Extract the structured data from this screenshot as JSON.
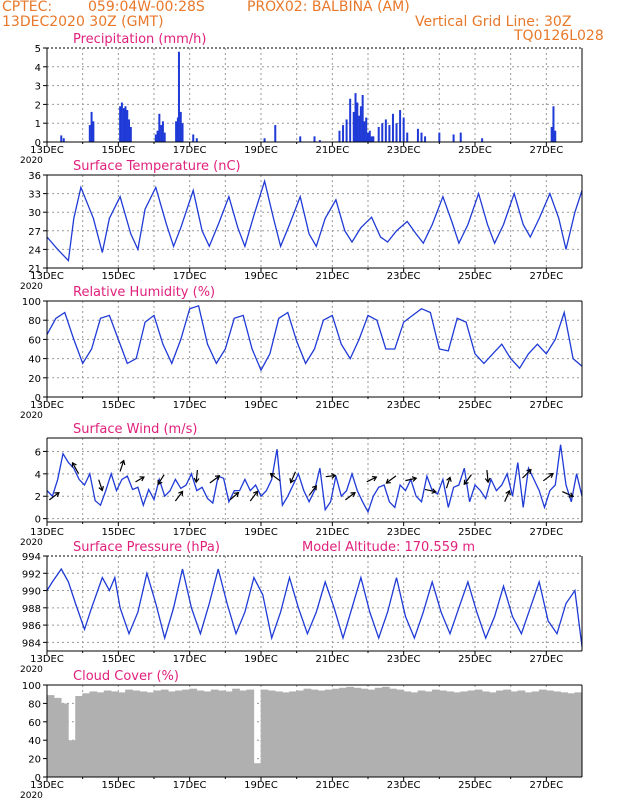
{
  "header": {
    "source": "CPTEC:",
    "coords": "059:04W-00:28S",
    "station": "PROX02: BALBINA (AM)",
    "date": "13DEC2020 30Z (GMT)",
    "grid_note": "Vertical Grid Line: 30Z",
    "run_code": "TQ0126L028"
  },
  "colors": {
    "title": "#e0217c",
    "header": "#e8782a",
    "line": "#1f3ad6",
    "bar": "#1f3ad6",
    "cloud": "#b0b0b0",
    "grid": "#9a9a9a",
    "arrow": "#000000"
  },
  "x_axis": {
    "ticks": [
      "13DEC",
      "15DEC",
      "17DEC",
      "19DEC",
      "21DEC",
      "23DEC",
      "25DEC",
      "27DEC"
    ],
    "tick_days": [
      0,
      2,
      4,
      6,
      8,
      10,
      12,
      14
    ],
    "start_label": "2020",
    "range_days": [
      0,
      15
    ]
  },
  "chart_data": [
    {
      "type": "bar",
      "title": "Precipitation (mm/h)",
      "ylim": [
        0,
        5
      ],
      "yticks": [
        0,
        1,
        2,
        3,
        4,
        5
      ],
      "x_unit": "days after 13DEC2020",
      "series": [
        {
          "x": [
            0.4,
            0.47,
            1.2,
            1.25,
            1.3,
            2.05,
            2.1,
            2.15,
            2.2,
            2.25,
            2.3,
            2.35,
            3.05,
            3.1,
            3.15,
            3.2,
            3.25,
            3.3,
            3.62,
            3.67,
            3.7,
            3.75,
            3.8,
            4.1,
            4.2,
            6.1,
            6.4,
            7.1,
            7.5,
            7.65,
            8.2,
            8.3,
            8.4,
            8.5,
            8.6,
            8.65,
            8.7,
            8.75,
            8.8,
            8.85,
            8.9,
            8.95,
            9.0,
            9.05,
            9.1,
            9.15,
            9.3,
            9.4,
            9.5,
            9.6,
            9.7,
            9.8,
            9.9,
            10.0,
            10.1,
            10.4,
            10.5,
            10.6,
            11.0,
            11.4,
            11.6,
            12.2,
            14.15,
            14.2,
            14.25
          ],
          "values": [
            0.35,
            0.2,
            0.9,
            1.6,
            1.1,
            1.9,
            2.1,
            1.8,
            1.9,
            1.7,
            1.2,
            0.8,
            0.4,
            0.6,
            1.5,
            0.9,
            1.1,
            0.5,
            1.1,
            1.3,
            4.8,
            1.6,
            1.0,
            0.4,
            0.2,
            0.2,
            0.9,
            0.3,
            0.3,
            0.1,
            0.6,
            0.9,
            1.2,
            2.3,
            1.6,
            2.6,
            2.1,
            1.4,
            1.9,
            2.5,
            1.1,
            1.3,
            0.5,
            0.6,
            0.3,
            0.3,
            0.8,
            1.0,
            1.2,
            0.9,
            1.5,
            1.0,
            1.7,
            1.3,
            0.5,
            0.7,
            0.5,
            0.3,
            0.5,
            0.4,
            0.5,
            0.2,
            0.8,
            1.9,
            0.6
          ]
        }
      ]
    },
    {
      "type": "line",
      "title": "Surface Temperature (nC)",
      "ylim": [
        21,
        36
      ],
      "yticks": [
        21,
        24,
        27,
        30,
        33,
        36
      ],
      "x_unit": "days after 13DEC2020",
      "series": [
        {
          "x": [
            0.0,
            0.3,
            0.6,
            0.75,
            0.95,
            1.3,
            1.55,
            1.75,
            2.05,
            2.35,
            2.55,
            2.75,
            3.05,
            3.35,
            3.55,
            3.75,
            4.1,
            4.35,
            4.55,
            4.8,
            5.1,
            5.35,
            5.55,
            5.8,
            6.1,
            6.35,
            6.55,
            6.8,
            7.1,
            7.35,
            7.55,
            7.8,
            8.1,
            8.35,
            8.55,
            8.8,
            9.1,
            9.35,
            9.55,
            9.8,
            10.1,
            10.35,
            10.55,
            10.8,
            11.1,
            11.35,
            11.55,
            11.8,
            12.1,
            12.35,
            12.55,
            12.8,
            13.1,
            13.35,
            13.55,
            13.8,
            14.1,
            14.35,
            14.55,
            14.8,
            15.0
          ],
          "values": [
            26.0,
            24.0,
            22.2,
            29.0,
            34.0,
            29.0,
            23.5,
            29.0,
            32.5,
            26.5,
            24.0,
            30.5,
            34.0,
            28.0,
            24.5,
            27.5,
            33.5,
            27.0,
            24.5,
            28.0,
            32.5,
            27.5,
            24.5,
            29.5,
            35.0,
            29.0,
            24.5,
            28.0,
            32.5,
            26.5,
            24.5,
            29.0,
            32.0,
            27.0,
            25.2,
            27.5,
            29.2,
            26.0,
            25.2,
            27.0,
            28.5,
            26.5,
            25.0,
            28.0,
            32.5,
            28.5,
            25.0,
            28.0,
            33.0,
            28.0,
            25.0,
            28.0,
            33.0,
            28.0,
            26.0,
            29.0,
            33.0,
            29.0,
            24.0,
            30.0,
            33.5
          ]
        }
      ]
    },
    {
      "type": "line",
      "title": "Relative Humidity (%)",
      "ylim": [
        0,
        100
      ],
      "yticks": [
        0,
        20,
        40,
        60,
        80,
        100
      ],
      "x_unit": "days after 13DEC2020",
      "series": [
        {
          "x": [
            0.0,
            0.25,
            0.5,
            0.75,
            1.0,
            1.25,
            1.5,
            1.75,
            2.0,
            2.25,
            2.5,
            2.75,
            3.0,
            3.25,
            3.5,
            3.75,
            4.0,
            4.25,
            4.5,
            4.75,
            5.0,
            5.25,
            5.5,
            5.75,
            6.0,
            6.25,
            6.5,
            6.75,
            7.0,
            7.25,
            7.5,
            7.75,
            8.0,
            8.25,
            8.5,
            8.75,
            9.0,
            9.25,
            9.5,
            9.75,
            10.0,
            10.25,
            10.5,
            10.75,
            11.0,
            11.25,
            11.5,
            11.75,
            12.0,
            12.25,
            12.5,
            12.75,
            13.0,
            13.25,
            13.5,
            13.75,
            14.0,
            14.25,
            14.5,
            14.75,
            15.0
          ],
          "values": [
            65,
            82,
            88,
            60,
            35,
            50,
            82,
            85,
            60,
            35,
            40,
            78,
            85,
            55,
            35,
            60,
            92,
            95,
            55,
            35,
            50,
            82,
            85,
            50,
            28,
            45,
            82,
            88,
            58,
            35,
            50,
            80,
            85,
            55,
            40,
            60,
            85,
            80,
            50,
            50,
            78,
            85,
            92,
            88,
            50,
            48,
            82,
            78,
            45,
            35,
            45,
            55,
            40,
            30,
            45,
            55,
            45,
            60,
            88,
            40,
            32
          ]
        }
      ]
    },
    {
      "type": "line",
      "title": "Surface Wind (m/s)",
      "ylim": [
        -0.3,
        7.2
      ],
      "yticks": [
        0,
        2,
        4,
        6
      ],
      "x_unit": "days after 13DEC2020",
      "series": [
        {
          "x": [
            0.0,
            0.15,
            0.3,
            0.45,
            0.6,
            0.75,
            0.9,
            1.05,
            1.2,
            1.35,
            1.5,
            1.65,
            1.8,
            1.95,
            2.1,
            2.25,
            2.4,
            2.55,
            2.7,
            2.85,
            3.0,
            3.15,
            3.3,
            3.45,
            3.6,
            3.75,
            3.9,
            4.05,
            4.2,
            4.35,
            4.5,
            4.65,
            4.8,
            4.95,
            5.1,
            5.25,
            5.4,
            5.55,
            5.7,
            5.85,
            6.0,
            6.15,
            6.3,
            6.45,
            6.6,
            6.75,
            6.9,
            7.05,
            7.2,
            7.35,
            7.5,
            7.65,
            7.8,
            7.95,
            8.1,
            8.25,
            8.4,
            8.55,
            8.7,
            8.85,
            9.0,
            9.15,
            9.3,
            9.45,
            9.6,
            9.75,
            9.9,
            10.05,
            10.2,
            10.35,
            10.5,
            10.65,
            10.8,
            10.95,
            11.1,
            11.25,
            11.4,
            11.55,
            11.7,
            11.85,
            12.0,
            12.15,
            12.3,
            12.45,
            12.6,
            12.75,
            12.9,
            13.05,
            13.2,
            13.35,
            13.5,
            13.65,
            13.8,
            13.95,
            14.1,
            14.25,
            14.4,
            14.55,
            14.7,
            14.85,
            15.0
          ],
          "values": [
            2.5,
            2.0,
            3.5,
            5.8,
            5.0,
            4.5,
            3.5,
            3.0,
            4.0,
            1.6,
            1.2,
            2.5,
            4.0,
            2.5,
            3.5,
            3.8,
            2.6,
            2.8,
            1.2,
            2.6,
            1.7,
            3.5,
            2.0,
            2.5,
            3.5,
            2.7,
            3.0,
            4.0,
            2.5,
            2.8,
            1.8,
            1.4,
            3.8,
            3.6,
            1.5,
            2.5,
            2.5,
            3.5,
            2.5,
            3.0,
            2.0,
            2.5,
            3.5,
            6.2,
            1.2,
            2.0,
            3.0,
            4.0,
            2.5,
            1.5,
            2.5,
            4.5,
            0.8,
            1.5,
            3.8,
            2.0,
            2.5,
            4.0,
            2.5,
            1.5,
            0.6,
            2.0,
            2.8,
            3.0,
            1.5,
            1.0,
            3.0,
            2.5,
            3.5,
            2.0,
            1.5,
            3.8,
            2.5,
            2.2,
            3.5,
            1.0,
            2.8,
            3.0,
            4.5,
            1.5,
            3.0,
            2.5,
            1.8,
            3.5,
            2.5,
            3.0,
            4.0,
            2.0,
            5.0,
            1.0,
            4.5,
            3.5,
            2.5,
            1.0,
            2.5,
            3.0,
            6.6,
            3.0,
            1.5,
            4.0,
            2.0
          ]
        }
      ],
      "wind_vectors": {
        "x": [
          0.2,
          0.8,
          1.5,
          2.1,
          2.6,
          3.2,
          3.7,
          4.2,
          4.7,
          5.25,
          5.8,
          6.4,
          6.9,
          7.45,
          7.95,
          8.5,
          9.1,
          9.65,
          10.2,
          10.75,
          11.25,
          11.8,
          12.35,
          12.9,
          13.45,
          14.05,
          14.6
        ],
        "values": [
          2.0,
          4.5,
          3.0,
          4.7,
          3.5,
          3.5,
          2.0,
          3.8,
          3.5,
          2.0,
          2.0,
          3.7,
          3.7,
          2.5,
          3.8,
          2.0,
          3.5,
          3.5,
          3.5,
          2.5,
          3.2,
          3.5,
          3.8,
          2.0,
          4.0,
          3.7,
          2.2
        ],
        "dx": [
          0.8,
          -0.5,
          0.3,
          0.3,
          0.7,
          -0.5,
          0.6,
          -0.1,
          0.8,
          0.7,
          0.6,
          -0.8,
          -0.4,
          0.6,
          0.8,
          0.8,
          0.8,
          -0.8,
          0.9,
          0.9,
          0.3,
          -0.6,
          0.1,
          0.4,
          0.7,
          0.8,
          0.9
        ],
        "dy": [
          0.6,
          0.9,
          -0.9,
          0.9,
          0.4,
          -0.8,
          0.8,
          -1.0,
          0.6,
          0.6,
          0.8,
          0.6,
          -0.9,
          0.8,
          0.1,
          0.6,
          0.4,
          -0.6,
          0.2,
          -0.2,
          0.9,
          -0.8,
          -1.0,
          0.9,
          0.7,
          0.6,
          -0.4
        ]
      }
    },
    {
      "type": "line",
      "title": "Surface Pressure (hPa)",
      "annotation": "Model Altitude: 170.559 m",
      "ylim": [
        983,
        994
      ],
      "yticks": [
        984,
        986,
        988,
        990,
        992,
        994
      ],
      "x_unit": "days after 13DEC2020",
      "series": [
        {
          "x": [
            0.0,
            0.15,
            0.4,
            0.6,
            0.8,
            1.05,
            1.25,
            1.55,
            1.75,
            1.9,
            2.05,
            2.3,
            2.55,
            2.8,
            3.05,
            3.3,
            3.55,
            3.8,
            4.05,
            4.3,
            4.55,
            4.8,
            5.05,
            5.3,
            5.55,
            5.8,
            6.05,
            6.3,
            6.55,
            6.8,
            7.05,
            7.3,
            7.55,
            7.8,
            8.05,
            8.3,
            8.55,
            8.8,
            9.05,
            9.3,
            9.55,
            9.8,
            10.05,
            10.3,
            10.55,
            10.8,
            11.05,
            11.3,
            11.55,
            11.8,
            12.05,
            12.3,
            12.55,
            12.8,
            13.05,
            13.3,
            13.55,
            13.8,
            14.05,
            14.3,
            14.55,
            14.8,
            15.0
          ],
          "values": [
            990.0,
            991.0,
            992.5,
            991.0,
            988.5,
            985.5,
            988.0,
            991.5,
            990.0,
            991.5,
            988.0,
            985.0,
            987.5,
            992.0,
            988.5,
            984.5,
            988.0,
            992.5,
            988.0,
            985.0,
            988.5,
            992.5,
            988.5,
            985.0,
            987.5,
            991.5,
            989.5,
            984.5,
            987.5,
            991.5,
            988.0,
            985.0,
            987.5,
            991.0,
            988.0,
            984.5,
            988.0,
            991.5,
            987.5,
            984.5,
            987.5,
            991.5,
            987.0,
            984.5,
            987.5,
            991.0,
            987.5,
            985.0,
            988.0,
            991.0,
            987.5,
            984.5,
            987.0,
            990.5,
            987.0,
            985.0,
            988.0,
            991.0,
            986.5,
            985.0,
            988.5,
            990.0,
            983.5
          ]
        }
      ]
    },
    {
      "type": "bar",
      "title": "Cloud Cover (%)",
      "ylim": [
        0,
        100
      ],
      "yticks": [
        0,
        20,
        40,
        60,
        80,
        100
      ],
      "x_unit": "days after 13DEC2020",
      "series": [
        {
          "x": [
            0.1,
            0.3,
            0.5,
            0.7,
            0.9,
            1.1,
            1.3,
            1.5,
            1.7,
            1.9,
            2.1,
            2.3,
            2.5,
            2.7,
            2.9,
            3.1,
            3.3,
            3.5,
            3.7,
            3.9,
            4.1,
            4.3,
            4.5,
            4.7,
            4.9,
            5.1,
            5.3,
            5.5,
            5.7,
            5.9,
            6.1,
            6.3,
            6.5,
            6.7,
            6.9,
            7.1,
            7.3,
            7.5,
            7.7,
            7.9,
            8.1,
            8.3,
            8.5,
            8.7,
            8.9,
            9.1,
            9.3,
            9.5,
            9.7,
            9.9,
            10.1,
            10.3,
            10.5,
            10.7,
            10.9,
            11.1,
            11.3,
            11.5,
            11.7,
            11.9,
            12.1,
            12.3,
            12.5,
            12.7,
            12.9,
            13.1,
            13.3,
            13.5,
            13.7,
            13.9,
            14.1,
            14.3,
            14.5,
            14.7,
            14.9
          ],
          "values": [
            89,
            86,
            80,
            40,
            88,
            91,
            93,
            92,
            94,
            93,
            92,
            95,
            94,
            93,
            92,
            94,
            95,
            93,
            94,
            95,
            96,
            94,
            93,
            95,
            94,
            93,
            96,
            94,
            95,
            15,
            95,
            94,
            93,
            92,
            93,
            94,
            96,
            95,
            94,
            95,
            96,
            97,
            98,
            97,
            96,
            95,
            97,
            98,
            96,
            95,
            93,
            92,
            94,
            93,
            95,
            94,
            93,
            92,
            93,
            94,
            95,
            93,
            92,
            94,
            95,
            93,
            94,
            92,
            93,
            95,
            94,
            93,
            92,
            91,
            92
          ]
        }
      ]
    }
  ]
}
